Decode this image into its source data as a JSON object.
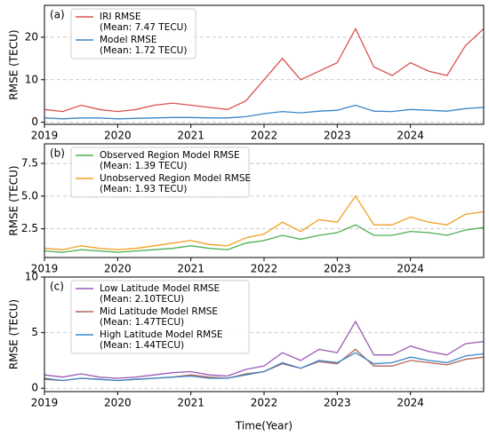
{
  "chart_data": [
    {
      "type": "line",
      "panel_label": "(a)",
      "y_label": "RMSE (TECU)",
      "x": [
        2019,
        2019.25,
        2019.5,
        2019.75,
        2020,
        2020.25,
        2020.5,
        2020.75,
        2021,
        2021.25,
        2021.5,
        2021.75,
        2022,
        2022.25,
        2022.5,
        2022.75,
        2023,
        2023.25,
        2023.5,
        2023.75,
        2024,
        2024.25,
        2024.5,
        2024.75,
        2025
      ],
      "xlim": [
        2019,
        2025
      ],
      "xticks": [
        2019,
        2020,
        2021,
        2022,
        2023,
        2024
      ],
      "ylim": [
        -0.5,
        27.5
      ],
      "yticks": [
        0,
        10,
        20
      ],
      "grid": true,
      "legend": "upper left",
      "series": [
        {
          "name": "IRI RMSE",
          "mean_label": "(Mean: 7.47 TECU)",
          "color": "#d9534f",
          "values": [
            3,
            2.5,
            4,
            3,
            2.5,
            3,
            4,
            4.5,
            4,
            3.5,
            3,
            5,
            10,
            15,
            10,
            12,
            14,
            22,
            13,
            11,
            14,
            12,
            11,
            18,
            22
          ]
        },
        {
          "name": "Model RMSE",
          "mean_label": "(Mean: 1.72 TECU)",
          "color": "#3a86c8",
          "values": [
            1,
            0.8,
            1,
            1,
            0.8,
            0.9,
            1,
            1.1,
            1.1,
            1,
            1,
            1.3,
            2,
            2.5,
            2.2,
            2.6,
            2.8,
            4,
            2.6,
            2.5,
            3,
            2.8,
            2.6,
            3.2,
            3.5
          ]
        }
      ]
    },
    {
      "type": "line",
      "panel_label": "(b)",
      "y_label": "RMSE (TECU)",
      "x": [
        2019,
        2019.25,
        2019.5,
        2019.75,
        2020,
        2020.25,
        2020.5,
        2020.75,
        2021,
        2021.25,
        2021.5,
        2021.75,
        2022,
        2022.25,
        2022.5,
        2022.75,
        2023,
        2023.25,
        2023.5,
        2023.75,
        2024,
        2024.25,
        2024.5,
        2024.75,
        2025
      ],
      "xlim": [
        2019,
        2025
      ],
      "xticks": [
        2019,
        2020,
        2021,
        2022,
        2023,
        2024
      ],
      "ylim": [
        0.3,
        9
      ],
      "yticks": [
        2.5,
        {
          "value": 5,
          "label": "5.0"
        },
        7.5
      ],
      "grid": true,
      "legend": "upper left",
      "series": [
        {
          "name": "Observed Region Model RMSE",
          "mean_label": "(Mean: 1.39 TECU)",
          "color": "#4caf50",
          "values": [
            0.8,
            0.7,
            0.9,
            0.8,
            0.7,
            0.8,
            0.9,
            1,
            1.2,
            1,
            0.9,
            1.4,
            1.6,
            2,
            1.7,
            2,
            2.2,
            2.8,
            2,
            2,
            2.3,
            2.2,
            2,
            2.4,
            2.6
          ]
        },
        {
          "name": "Unobserved Region Model RMSE",
          "mean_label": "(Mean: 1.93 TECU)",
          "color": "#f0a020",
          "values": [
            1,
            0.9,
            1.2,
            1,
            0.9,
            1,
            1.2,
            1.4,
            1.6,
            1.3,
            1.2,
            1.8,
            2.1,
            3,
            2.3,
            3.2,
            3,
            5,
            2.8,
            2.8,
            3.4,
            3,
            2.8,
            3.6,
            3.8
          ]
        }
      ]
    },
    {
      "type": "line",
      "panel_label": "(c)",
      "y_label": "RMSE (TECU)",
      "x_label": "Time(Year)",
      "x": [
        2019,
        2019.25,
        2019.5,
        2019.75,
        2020,
        2020.25,
        2020.5,
        2020.75,
        2021,
        2021.25,
        2021.5,
        2021.75,
        2022,
        2022.25,
        2022.5,
        2022.75,
        2023,
        2023.25,
        2023.5,
        2023.75,
        2024,
        2024.25,
        2024.5,
        2024.75,
        2025
      ],
      "xlim": [
        2019,
        2025
      ],
      "xticks": [
        2019,
        2020,
        2021,
        2022,
        2023,
        2024
      ],
      "ylim": [
        -0.3,
        10
      ],
      "yticks": [
        0,
        5,
        10
      ],
      "grid": true,
      "legend": "upper left",
      "series": [
        {
          "name": "Low Latitude Model RMSE",
          "mean_label": "(Mean: 2.10TECU)",
          "color": "#9b59b6",
          "values": [
            1.2,
            1,
            1.3,
            1,
            0.9,
            1,
            1.2,
            1.4,
            1.5,
            1.2,
            1.1,
            1.7,
            2,
            3.2,
            2.5,
            3.5,
            3.2,
            6,
            3,
            3,
            3.8,
            3.3,
            3,
            4,
            4.2
          ]
        },
        {
          "name": "Mid Latitude Model RMSE",
          "mean_label": "(Mean: 1.47TECU)",
          "color": "#b5655a",
          "values": [
            0.8,
            0.7,
            0.9,
            0.8,
            0.7,
            0.8,
            0.9,
            1,
            1.2,
            1,
            0.9,
            1.3,
            1.5,
            2.2,
            1.8,
            2.4,
            2.2,
            3.5,
            2,
            2,
            2.5,
            2.3,
            2.1,
            2.6,
            2.8
          ]
        },
        {
          "name": "High Latitude Model RMSE",
          "mean_label": "(Mean: 1.44TECU)",
          "color": "#3a86c8",
          "values": [
            0.9,
            0.7,
            0.9,
            0.8,
            0.7,
            0.8,
            0.9,
            1,
            1.1,
            0.9,
            0.9,
            1.2,
            1.5,
            2.3,
            1.8,
            2.5,
            2.3,
            3.2,
            2.2,
            2.3,
            2.8,
            2.5,
            2.3,
            2.9,
            3.1
          ]
        }
      ]
    }
  ]
}
